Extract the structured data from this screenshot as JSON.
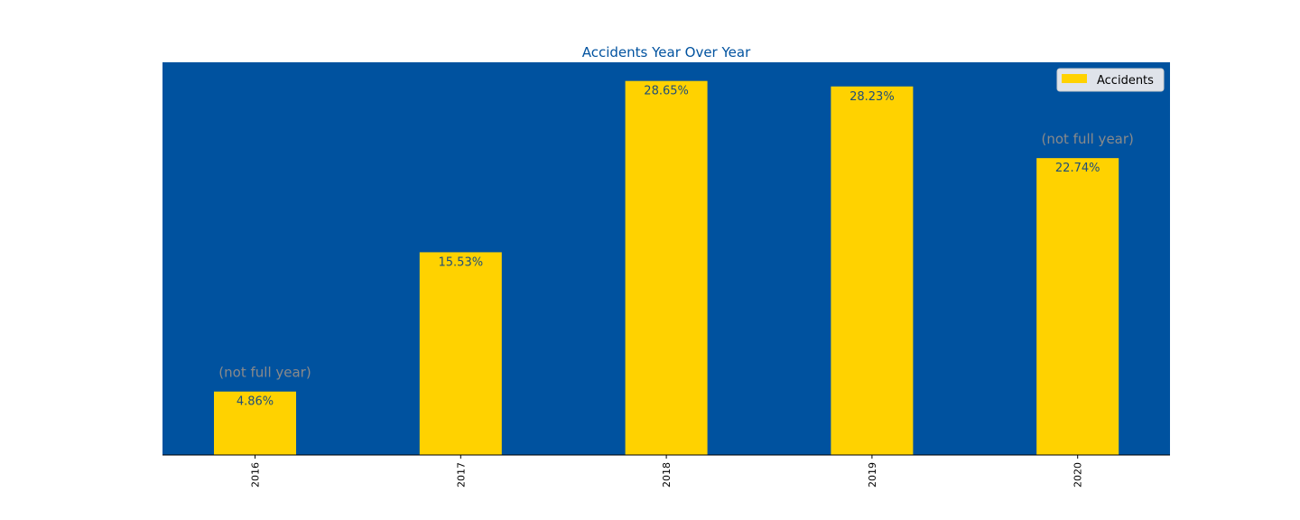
{
  "colors": {
    "plot_background": "#00529f",
    "bar": "#ffd200",
    "bar_label": "#1f4e79",
    "note": "#8a8a8a",
    "title": "#00529f"
  },
  "chart_data": {
    "type": "bar",
    "title": "Accidents Year Over Year",
    "xlabel": "",
    "ylabel": "",
    "categories": [
      "2016",
      "2017",
      "2018",
      "2019",
      "2020"
    ],
    "series": [
      {
        "name": "Accidents",
        "values": [
          4.86,
          15.53,
          28.65,
          28.23,
          22.74
        ]
      }
    ],
    "labels": [
      "4.86%",
      "15.53%",
      "28.65%",
      "28.23%",
      "22.74%"
    ],
    "ylim": [
      0,
      30.08
    ],
    "grid": false,
    "legend_position": "top-right",
    "annotations": [
      {
        "category": "2016",
        "text": "(not full year)"
      },
      {
        "category": "2020",
        "text": "(not full year)"
      }
    ]
  }
}
